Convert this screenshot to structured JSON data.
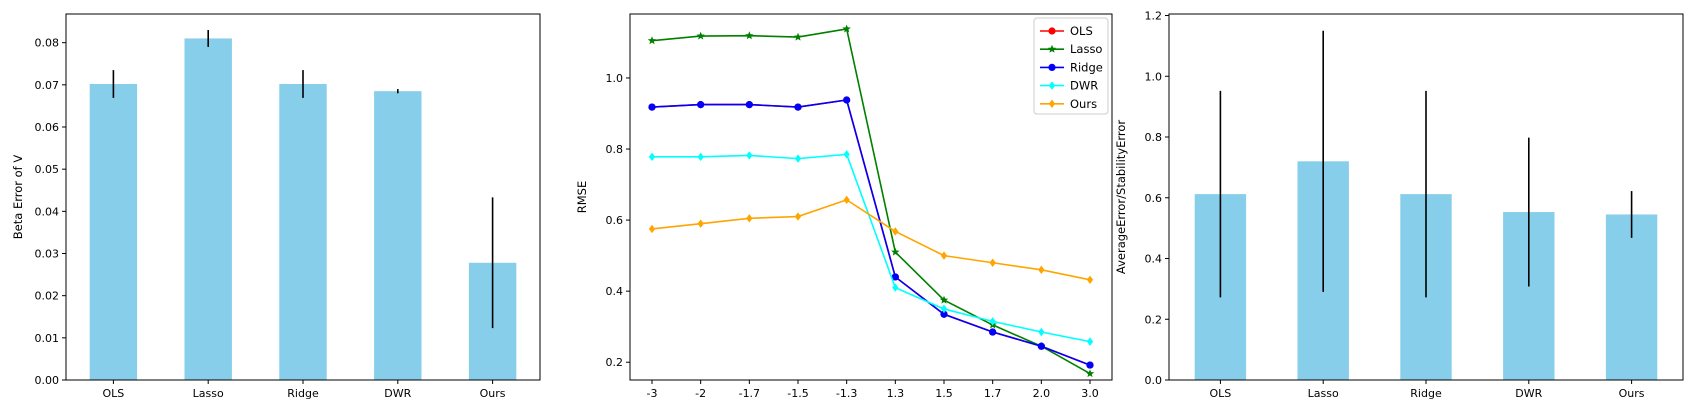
{
  "chart_data": [
    {
      "type": "bar",
      "categories": [
        "OLS",
        "Lasso",
        "Ridge",
        "DWR",
        "Ours"
      ],
      "values": [
        0.0702,
        0.081,
        0.0702,
        0.0685,
        0.0278
      ],
      "errors": [
        0.0033,
        0.002,
        0.0033,
        0.0005,
        0.0155
      ],
      "ylabel": "Beta Error of V",
      "ylim": [
        0,
        0.0868
      ],
      "yticks": [
        0.0,
        0.01,
        0.02,
        0.03,
        0.04,
        0.05,
        0.06,
        0.07,
        0.08
      ],
      "ytick_labels": [
        "0.00",
        "0.01",
        "0.02",
        "0.03",
        "0.04",
        "0.05",
        "0.06",
        "0.07",
        "0.08"
      ],
      "bar_color": "#87ceeb",
      "error_color": "#000000"
    },
    {
      "type": "line",
      "x": [
        "-3",
        "-2",
        "-1.7",
        "-1.5",
        "-1.3",
        "1.3",
        "1.5",
        "1.7",
        "2.0",
        "3.0"
      ],
      "ylabel": "RMSE",
      "ylim": [
        0.15,
        1.18
      ],
      "yticks": [
        0.2,
        0.4,
        0.6,
        0.8,
        1.0
      ],
      "ytick_labels": [
        "0.2",
        "0.4",
        "0.6",
        "0.8",
        "1.0"
      ],
      "legend_position": "top-right",
      "series": [
        {
          "name": "OLS",
          "color": "#ff0000",
          "marker": "circle",
          "values": [
            0.918,
            0.925,
            0.925,
            0.918,
            0.938,
            0.44,
            0.335,
            0.285,
            0.245,
            0.192
          ]
        },
        {
          "name": "Lasso",
          "color": "#008000",
          "marker": "star",
          "values": [
            1.105,
            1.118,
            1.119,
            1.115,
            1.138,
            0.51,
            0.375,
            0.305,
            0.245,
            0.168
          ]
        },
        {
          "name": "Ridge",
          "color": "#0000ff",
          "marker": "circle",
          "values": [
            0.918,
            0.925,
            0.925,
            0.918,
            0.938,
            0.44,
            0.335,
            0.285,
            0.245,
            0.192
          ]
        },
        {
          "name": "DWR",
          "color": "#00ffff",
          "marker": "diamond",
          "values": [
            0.778,
            0.778,
            0.782,
            0.773,
            0.785,
            0.41,
            0.35,
            0.315,
            0.285,
            0.258
          ]
        },
        {
          "name": "Ours",
          "color": "#ffa500",
          "marker": "diamond",
          "values": [
            0.575,
            0.59,
            0.605,
            0.61,
            0.657,
            0.568,
            0.5,
            0.48,
            0.46,
            0.432
          ]
        }
      ]
    },
    {
      "type": "bar",
      "categories": [
        "OLS",
        "Lasso",
        "Ridge",
        "DWR",
        "Ours"
      ],
      "values": [
        0.612,
        0.72,
        0.612,
        0.553,
        0.545
      ],
      "errors": [
        0.34,
        0.43,
        0.34,
        0.245,
        0.077
      ],
      "ylabel": "AverageError/StabilityError",
      "ylim": [
        0,
        1.205
      ],
      "yticks": [
        0.0,
        0.2,
        0.4,
        0.6,
        0.8,
        1.0,
        1.2
      ],
      "ytick_labels": [
        "0.0",
        "0.2",
        "0.4",
        "0.6",
        "0.8",
        "1.0",
        "1.2"
      ],
      "bar_color": "#87ceeb",
      "error_color": "#000000"
    }
  ]
}
